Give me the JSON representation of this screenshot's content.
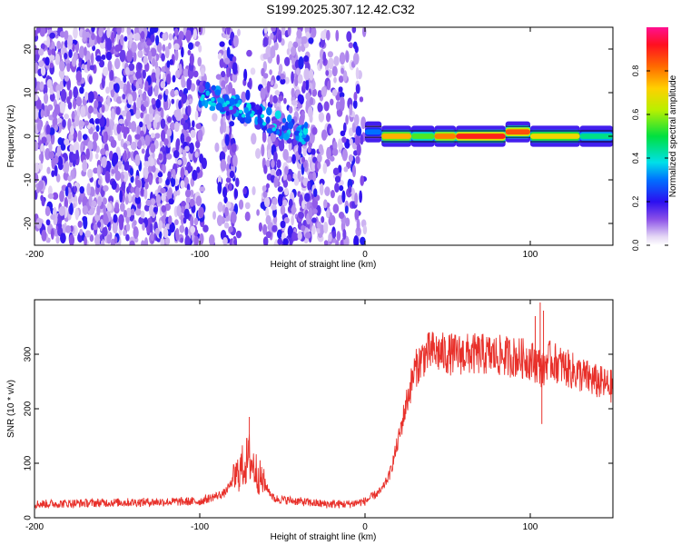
{
  "title": "S199.2025.307.12.42.C32",
  "chart_data": [
    {
      "type": "heatmap",
      "name": "spectrogram",
      "xlabel": "Height of straight line (km)",
      "ylabel": "Frequency (Hz)",
      "xlim": [
        -200,
        150
      ],
      "ylim": [
        -25,
        25
      ],
      "xticks": [
        -200,
        -100,
        0,
        100
      ],
      "yticks": [
        -20,
        -10,
        0,
        10,
        20
      ],
      "colorbar": {
        "label": "Normalized spectral amplitude",
        "range": [
          0.0,
          1.0
        ],
        "ticks": [
          0.0,
          0.2,
          0.4,
          0.6,
          0.8
        ]
      },
      "noise_band": {
        "x": [
          -200,
          0
        ],
        "gaps": [
          [
            -78,
            -62
          ],
          [
            -98,
            -88
          ]
        ]
      },
      "main_track": [
        {
          "x": [
            0,
            10
          ],
          "freq": 1,
          "amplitude": 0.3
        },
        {
          "x": [
            10,
            28
          ],
          "freq": 0,
          "amplitude": 0.75
        },
        {
          "x": [
            28,
            42
          ],
          "freq": 0,
          "amplitude": 0.55
        },
        {
          "x": [
            42,
            55
          ],
          "freq": 0,
          "amplitude": 0.8
        },
        {
          "x": [
            55,
            85
          ],
          "freq": 0,
          "amplitude": 0.9
        },
        {
          "x": [
            85,
            100
          ],
          "freq": 1,
          "amplitude": 0.85
        },
        {
          "x": [
            100,
            130
          ],
          "freq": 0,
          "amplitude": 0.7
        },
        {
          "x": [
            130,
            150
          ],
          "freq": 0,
          "amplitude": 0.45
        }
      ],
      "diagonal_feature": {
        "x": [
          -100,
          -35
        ],
        "freq": [
          10,
          0
        ],
        "amplitude": 0.3
      }
    },
    {
      "type": "line",
      "name": "snr",
      "xlabel": "Height of straight line (km)",
      "ylabel": "SNR (10 * v/v)",
      "xlim": [
        -200,
        150
      ],
      "ylim": [
        0,
        400
      ],
      "xticks": [
        -200,
        -100,
        0,
        100
      ],
      "yticks": [
        0,
        100,
        200,
        300
      ],
      "color": "#e8302a",
      "series": [
        {
          "name": "SNR",
          "x": [
            -200,
            -150,
            -100,
            -85,
            -75,
            -70,
            -65,
            -55,
            -40,
            -25,
            -10,
            0,
            10,
            15,
            20,
            25,
            30,
            35,
            40,
            50,
            70,
            90,
            100,
            105,
            108,
            110,
            115,
            125,
            140,
            150
          ],
          "y": [
            25,
            28,
            30,
            45,
            90,
            110,
            80,
            35,
            30,
            25,
            25,
            30,
            50,
            80,
            140,
            210,
            270,
            295,
            305,
            300,
            300,
            295,
            290,
            280,
            270,
            290,
            285,
            270,
            250,
            240
          ]
        }
      ],
      "spikes": [
        {
          "x": -70,
          "y": 185
        },
        {
          "x": 103,
          "y": 370
        },
        {
          "x": 106,
          "y": 395
        },
        {
          "x": 107,
          "y": 172
        },
        {
          "x": 108,
          "y": 380
        }
      ]
    }
  ]
}
